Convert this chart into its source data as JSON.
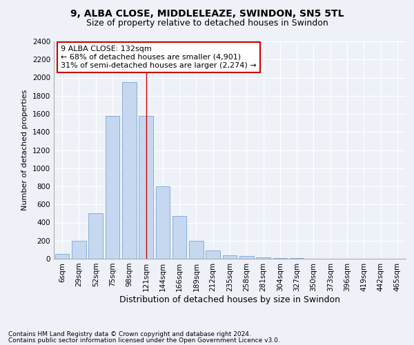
{
  "title1": "9, ALBA CLOSE, MIDDLELEAZE, SWINDON, SN5 5TL",
  "title2": "Size of property relative to detached houses in Swindon",
  "xlabel": "Distribution of detached houses by size in Swindon",
  "ylabel": "Number of detached properties",
  "categories": [
    "6sqm",
    "29sqm",
    "52sqm",
    "75sqm",
    "98sqm",
    "121sqm",
    "144sqm",
    "166sqm",
    "189sqm",
    "212sqm",
    "235sqm",
    "258sqm",
    "281sqm",
    "304sqm",
    "327sqm",
    "350sqm",
    "373sqm",
    "396sqm",
    "419sqm",
    "442sqm",
    "465sqm"
  ],
  "values": [
    50,
    200,
    500,
    1580,
    1950,
    1580,
    800,
    470,
    195,
    90,
    40,
    28,
    18,
    10,
    5,
    3,
    2,
    1,
    1,
    0,
    0
  ],
  "bar_color": "#c5d8ef",
  "bar_edge_color": "#6699cc",
  "vline_x": 5,
  "vline_color": "#cc0000",
  "annotation_text": "9 ALBA CLOSE: 132sqm\n← 68% of detached houses are smaller (4,901)\n31% of semi-detached houses are larger (2,274) →",
  "annotation_box_color": "#ffffff",
  "annotation_box_edge": "#cc0000",
  "ylim": [
    0,
    2400
  ],
  "yticks": [
    0,
    200,
    400,
    600,
    800,
    1000,
    1200,
    1400,
    1600,
    1800,
    2000,
    2200,
    2400
  ],
  "footer1": "Contains HM Land Registry data © Crown copyright and database right 2024.",
  "footer2": "Contains public sector information licensed under the Open Government Licence v3.0.",
  "bg_color": "#eef2f8",
  "grid_color": "#ffffff",
  "title1_fontsize": 10,
  "title2_fontsize": 9,
  "xlabel_fontsize": 9,
  "ylabel_fontsize": 8,
  "tick_fontsize": 7.5,
  "annot_fontsize": 8,
  "footer_fontsize": 6.5
}
